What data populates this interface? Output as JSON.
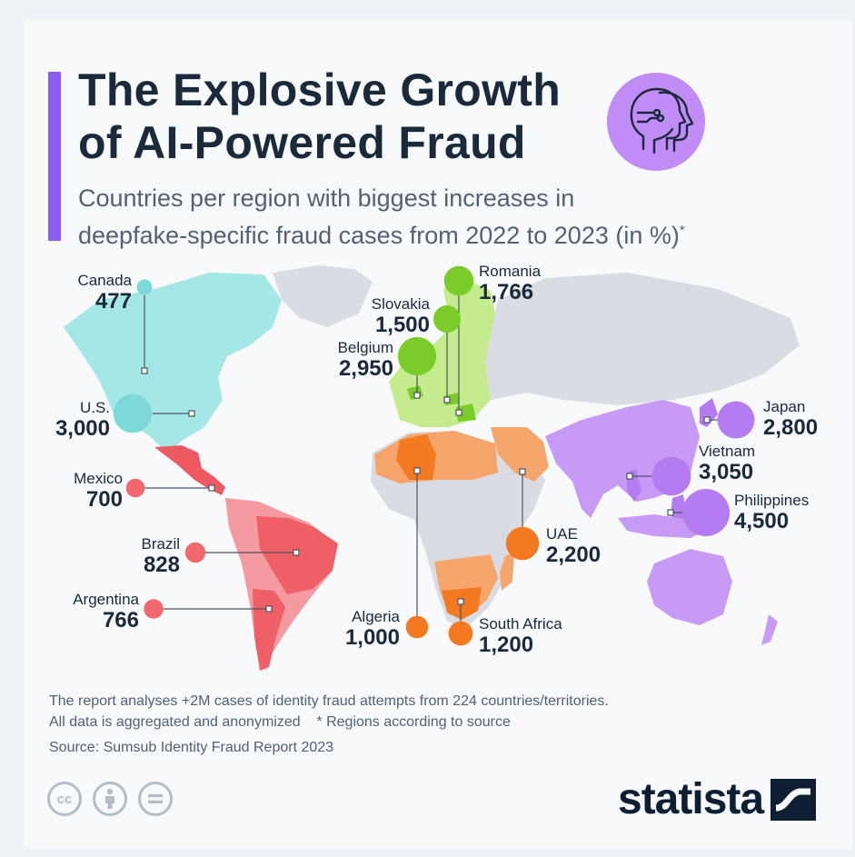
{
  "header": {
    "title_line1": "The Explosive Growth",
    "title_line2": "of AI-Powered Fraud",
    "subtitle_line1": "Countries per region with biggest increases in",
    "subtitle_line2": "deepfake-specific fraud cases from 2022 to 2023 (in %)",
    "subtitle_mark": "*"
  },
  "colors": {
    "accent": "#8c5cf2",
    "north_america": "#7dd9d9",
    "latin_america": "#f2686f",
    "europe": "#7acc29",
    "africa_middle_east": "#f47a22",
    "asia_pacific": "#b57cf2"
  },
  "chart_data": {
    "type": "bubble-map",
    "title": "The Explosive Growth of AI-Powered Fraud",
    "subtitle": "Countries per region with biggest increases in deepfake-specific fraud cases from 2022 to 2023 (in %)*",
    "unit": "%",
    "points": [
      {
        "country": "Canada",
        "value": 477,
        "region": "north_america"
      },
      {
        "country": "U.S.",
        "value": 3000,
        "region": "north_america"
      },
      {
        "country": "Mexico",
        "value": 700,
        "region": "latin_america"
      },
      {
        "country": "Brazil",
        "value": 828,
        "region": "latin_america"
      },
      {
        "country": "Argentina",
        "value": 766,
        "region": "latin_america"
      },
      {
        "country": "Romania",
        "value": 1766,
        "region": "europe"
      },
      {
        "country": "Slovakia",
        "value": 1500,
        "region": "europe"
      },
      {
        "country": "Belgium",
        "value": 2950,
        "region": "europe"
      },
      {
        "country": "Algeria",
        "value": 1000,
        "region": "africa_middle_east"
      },
      {
        "country": "South Africa",
        "value": 1200,
        "region": "africa_middle_east"
      },
      {
        "country": "UAE",
        "value": 2200,
        "region": "africa_middle_east"
      },
      {
        "country": "Japan",
        "value": 2800,
        "region": "asia_pacific"
      },
      {
        "country": "Vietnam",
        "value": 3050,
        "region": "asia_pacific"
      },
      {
        "country": "Philippines",
        "value": 4500,
        "region": "asia_pacific"
      }
    ]
  },
  "labels": {
    "canada": {
      "country": "Canada",
      "value": "477"
    },
    "us": {
      "country": "U.S.",
      "value": "3,000"
    },
    "mexico": {
      "country": "Mexico",
      "value": "700"
    },
    "brazil": {
      "country": "Brazil",
      "value": "828"
    },
    "argentina": {
      "country": "Argentina",
      "value": "766"
    },
    "romania": {
      "country": "Romania",
      "value": "1,766"
    },
    "slovakia": {
      "country": "Slovakia",
      "value": "1,500"
    },
    "belgium": {
      "country": "Belgium",
      "value": "2,950"
    },
    "algeria": {
      "country": "Algeria",
      "value": "1,000"
    },
    "south_africa": {
      "country": "South Africa",
      "value": "1,200"
    },
    "uae": {
      "country": "UAE",
      "value": "2,200"
    },
    "japan": {
      "country": "Japan",
      "value": "2,800"
    },
    "vietnam": {
      "country": "Vietnam",
      "value": "3,050"
    },
    "philippines": {
      "country": "Philippines",
      "value": "4,500"
    }
  },
  "footer": {
    "note_line1": "The report analyses +2M cases of identity fraud attempts from 224 countries/territories.",
    "note_line2": "All data is aggregated and anonymized    * Regions according to source",
    "source": "Source: Sumsub Identity Fraud Report 2023",
    "license_icons": [
      "creative-commons-icon",
      "attribution-person-icon",
      "no-derivatives-equals-icon"
    ],
    "cc_text": "cc",
    "brand": "statista"
  }
}
